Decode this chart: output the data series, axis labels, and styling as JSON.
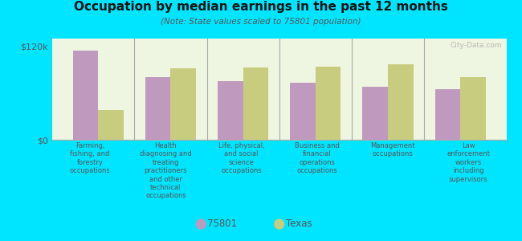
{
  "title": "Occupation by median earnings in the past 12 months",
  "subtitle": "(Note: State values scaled to 75801 population)",
  "categories": [
    "Farming,\nfishing, and\nforestry\noccupations",
    "Health\ndiagnosing and\ntreating\npractitioners\nand other\ntechnical\noccupations",
    "Life, physical,\nand social\nscience\noccupations",
    "Business and\nfinancial\noperations\noccupations",
    "Management\noccupations",
    "Law\nenforcement\nworkers\nincluding\nsupervisors"
  ],
  "values_75801": [
    115000,
    80000,
    75000,
    73000,
    68000,
    65000
  ],
  "values_texas": [
    38000,
    92000,
    93000,
    94000,
    97000,
    80000
  ],
  "ylim": [
    0,
    130000
  ],
  "yticks": [
    0,
    120000
  ],
  "ytick_labels": [
    "$0",
    "$120k"
  ],
  "color_75801": "#c09abe",
  "color_texas": "#c8cc7e",
  "background_outer": "#00e5ff",
  "background_inner": "#eef5e0",
  "bar_width": 0.35,
  "legend_labels": [
    "75801",
    "Texas"
  ],
  "watermark": "City-Data.com"
}
